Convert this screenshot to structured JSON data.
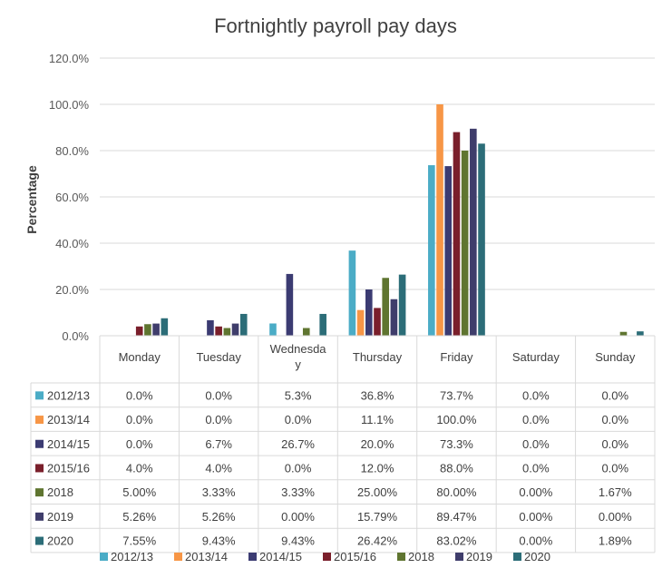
{
  "chart_data": {
    "type": "bar",
    "title": "Fortnightly payroll pay days",
    "ylabel": "Percentage",
    "xlabel": "",
    "ylim": [
      0,
      120
    ],
    "y_ticks": [
      "0.0%",
      "20.0%",
      "40.0%",
      "60.0%",
      "80.0%",
      "100.0%",
      "120.0%"
    ],
    "categories": [
      "Monday",
      "Tuesday",
      "Wednesday",
      "Thursday",
      "Friday",
      "Saturday",
      "Sunday"
    ],
    "category_display": [
      [
        "Monday"
      ],
      [
        "Tuesday"
      ],
      [
        "Wednesda",
        "y"
      ],
      [
        "Thursday"
      ],
      [
        "Friday"
      ],
      [
        "Saturday"
      ],
      [
        "Sunday"
      ]
    ],
    "grid": true,
    "legend_position": "bottom",
    "has_data_table": true,
    "series": [
      {
        "name": "2012/13",
        "color": "#4bacc6",
        "values": [
          0.0,
          0.0,
          5.3,
          36.8,
          73.7,
          0.0,
          0.0
        ],
        "labels": [
          "0.0%",
          "0.0%",
          "5.3%",
          "36.8%",
          "73.7%",
          "0.0%",
          "0.0%"
        ]
      },
      {
        "name": "2013/14",
        "color": "#f79646",
        "values": [
          0.0,
          0.0,
          0.0,
          11.1,
          100.0,
          0.0,
          0.0
        ],
        "labels": [
          "0.0%",
          "0.0%",
          "0.0%",
          "11.1%",
          "100.0%",
          "0.0%",
          "0.0%"
        ]
      },
      {
        "name": "2014/15",
        "color": "#3b3b72",
        "values": [
          0.0,
          6.7,
          26.7,
          20.0,
          73.3,
          0.0,
          0.0
        ],
        "labels": [
          "0.0%",
          "6.7%",
          "26.7%",
          "20.0%",
          "73.3%",
          "0.0%",
          "0.0%"
        ]
      },
      {
        "name": "2015/16",
        "color": "#7a1f2b",
        "values": [
          4.0,
          4.0,
          0.0,
          12.0,
          88.0,
          0.0,
          0.0
        ],
        "labels": [
          "4.0%",
          "4.0%",
          "0.0%",
          "12.0%",
          "88.0%",
          "0.0%",
          "0.0%"
        ]
      },
      {
        "name": "2018",
        "color": "#5f7530",
        "values": [
          5.0,
          3.33,
          3.33,
          25.0,
          80.0,
          0.0,
          1.67
        ],
        "labels": [
          "5.00%",
          "3.33%",
          "3.33%",
          "25.00%",
          "80.00%",
          "0.00%",
          "1.67%"
        ]
      },
      {
        "name": "2019",
        "color": "#3f3d6b",
        "values": [
          5.26,
          5.26,
          0.0,
          15.79,
          89.47,
          0.0,
          0.0
        ],
        "labels": [
          "5.26%",
          "5.26%",
          "0.00%",
          "15.79%",
          "89.47%",
          "0.00%",
          "0.00%"
        ]
      },
      {
        "name": "2020",
        "color": "#2c6d78",
        "values": [
          7.55,
          9.43,
          9.43,
          26.42,
          83.02,
          0.0,
          1.89
        ],
        "labels": [
          "7.55%",
          "9.43%",
          "9.43%",
          "26.42%",
          "83.02%",
          "0.00%",
          "1.89%"
        ]
      }
    ]
  }
}
